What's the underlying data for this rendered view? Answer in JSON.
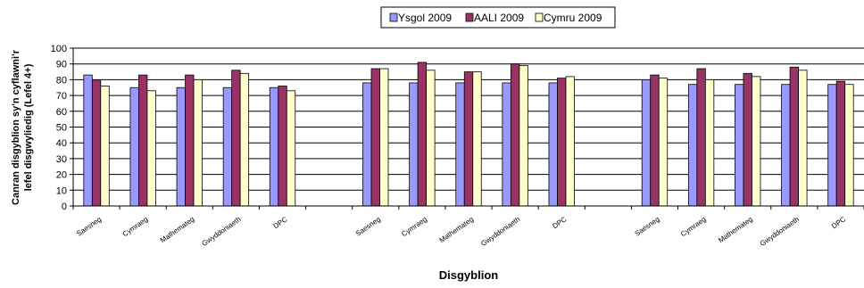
{
  "chart_data": {
    "type": "bar",
    "xlabel": "Disgyblion",
    "ylabel_lines": [
      "Canran disgyblion sy'n cyflawni'r",
      "lefel disgwyliedig (Lefel 4+)"
    ],
    "ylim": [
      0,
      100
    ],
    "yticks": [
      0,
      10,
      20,
      30,
      40,
      50,
      60,
      70,
      80,
      90,
      100
    ],
    "grid": true,
    "legend_position": "top-center",
    "categories": [
      "Saesneg",
      "Cymraeg",
      "Mathemateg",
      "Gwyddoniaeth",
      "DPC",
      "",
      "Saesneg",
      "Cymraeg",
      "Mathemateg",
      "Gwyddoniaeth",
      "DPC",
      "",
      "Saesneg",
      "Cymraeg",
      "Mathemateg",
      "Gwyddoniaeth",
      "DPC"
    ],
    "series": [
      {
        "name": "Ysgol 2009",
        "color": "#9999ff",
        "values": [
          83,
          75,
          75,
          75,
          75,
          null,
          78,
          78,
          78,
          78,
          78,
          null,
          80,
          77,
          77,
          77,
          77
        ]
      },
      {
        "name": "AALI 2009",
        "color": "#993366",
        "values": [
          80,
          83,
          83,
          86,
          76,
          null,
          87,
          91,
          85,
          90,
          81,
          null,
          83,
          87,
          84,
          88,
          79
        ]
      },
      {
        "name": "Cymru 2009",
        "color": "#ffffcc",
        "values": [
          76,
          73,
          80,
          84,
          73,
          null,
          87,
          86,
          85,
          89,
          82,
          null,
          81,
          80,
          82,
          86,
          77
        ]
      }
    ]
  }
}
